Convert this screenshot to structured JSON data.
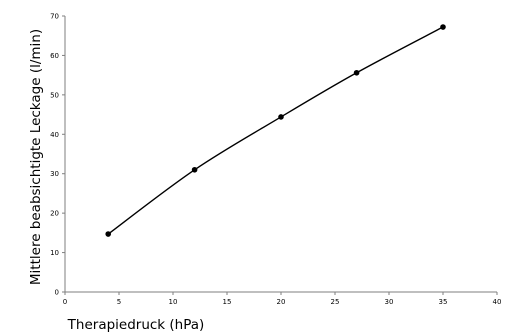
{
  "chart_data": {
    "type": "line",
    "xlabel": "Therapiedruck (hPa)",
    "ylabel": "Mittlere beabsichtigte Leckage (l/min)",
    "xlim": [
      0,
      40
    ],
    "ylim": [
      0,
      70
    ],
    "xticks": [
      0,
      5,
      10,
      15,
      20,
      25,
      30,
      35,
      40
    ],
    "yticks": [
      0,
      10,
      20,
      30,
      40,
      50,
      60,
      70
    ],
    "grid": false,
    "legend": "none",
    "series": [
      {
        "x": [
          4,
          12,
          20,
          27,
          35
        ],
        "y": [
          14.7,
          31,
          44.4,
          55.6,
          67.2
        ],
        "color": "#000000",
        "marker": "circle",
        "smooth": true
      }
    ]
  }
}
